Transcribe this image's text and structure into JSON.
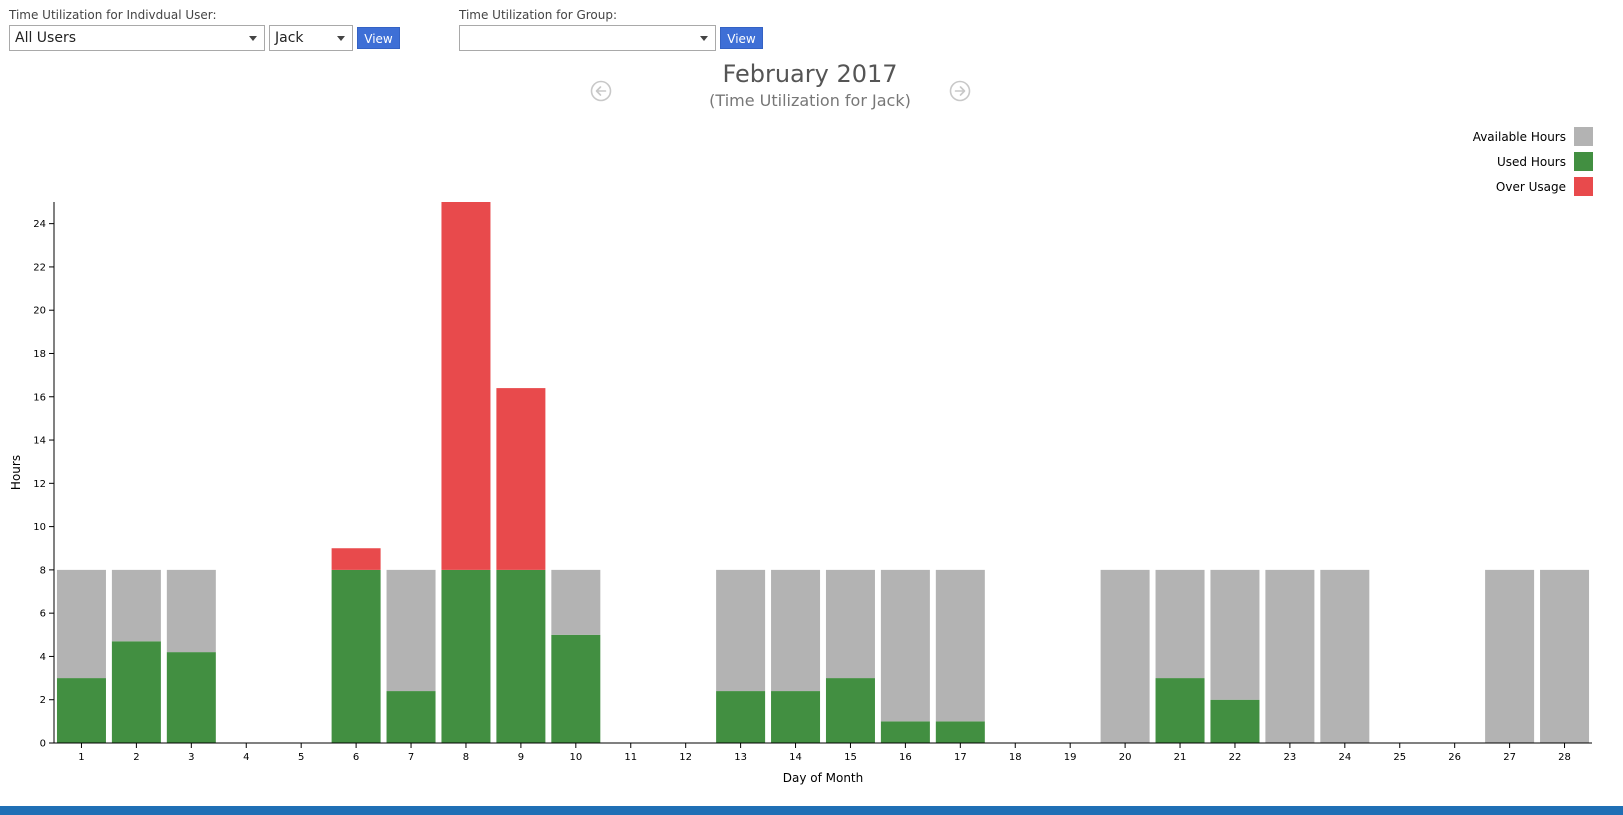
{
  "individual": {
    "label": "Time Utilization for Indivdual User:",
    "user_filter": "All Users",
    "user": "Jack",
    "view_label": "View"
  },
  "group": {
    "label": "Time Utilization for Group:",
    "value": "",
    "view_label": "View"
  },
  "header": {
    "title": "February 2017",
    "subtitle": "(Time Utilization for Jack)",
    "prev_icon": "arrow-left-circle-icon",
    "next_icon": "arrow-right-circle-icon"
  },
  "legend": [
    {
      "label": "Available Hours",
      "color": "#b3b3b3"
    },
    {
      "label": "Used Hours",
      "color": "#428f41"
    },
    {
      "label": "Over Usage",
      "color": "#e84a4c"
    }
  ],
  "chart_data": {
    "type": "bar",
    "stacked": true,
    "xlabel": "Day of Month",
    "ylabel": "Hours",
    "ylim": [
      0,
      25
    ],
    "yticks": [
      0,
      2,
      4,
      6,
      8,
      10,
      12,
      14,
      16,
      18,
      20,
      22,
      24
    ],
    "legend_position": "top-right",
    "grid": false,
    "categories": [
      "1",
      "2",
      "3",
      "4",
      "5",
      "6",
      "7",
      "8",
      "9",
      "10",
      "11",
      "12",
      "13",
      "14",
      "15",
      "16",
      "17",
      "18",
      "19",
      "20",
      "21",
      "22",
      "23",
      "24",
      "25",
      "26",
      "27",
      "28"
    ],
    "series": [
      {
        "name": "Used Hours",
        "color": "#428f41",
        "values": [
          3,
          4.7,
          4.2,
          0,
          0,
          8,
          2.4,
          8,
          8,
          5,
          0,
          0,
          2.4,
          2.4,
          3,
          1,
          1,
          0,
          0,
          0,
          3,
          2,
          0,
          0,
          0,
          0,
          0,
          0
        ]
      },
      {
        "name": "Available Hours",
        "color": "#b3b3b3",
        "values": [
          5,
          3.3,
          3.8,
          0,
          0,
          0,
          5.6,
          0,
          0,
          3,
          0,
          0,
          5.6,
          5.6,
          5,
          7,
          7,
          0,
          0,
          8,
          5,
          6,
          8,
          8,
          0,
          0,
          8,
          8
        ]
      },
      {
        "name": "Over Usage",
        "color": "#e84a4c",
        "values": [
          0,
          0,
          0,
          0,
          0,
          1,
          0,
          17,
          8.4,
          0,
          0,
          0,
          0,
          0,
          0,
          0,
          0,
          0,
          0,
          0,
          0,
          0,
          0,
          0,
          0,
          0,
          0,
          0
        ]
      }
    ]
  }
}
